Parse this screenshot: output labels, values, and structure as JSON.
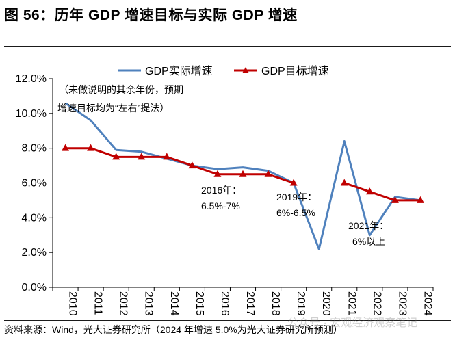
{
  "title": "图 56：历年 GDP 增速目标与实际 GDP 增速",
  "source": "资料来源：Wind，光大证券研究所（2024 年增速 5.0%为光大证券研究所预测）",
  "watermark": "公众号 · 宏观经济观察笔记",
  "chart_data": {
    "type": "line",
    "x": [
      "2010",
      "2011",
      "2012",
      "2013",
      "2014",
      "2015",
      "2016",
      "2017",
      "2018",
      "2019",
      "2020",
      "2021",
      "2022",
      "2023",
      "2024"
    ],
    "yticks": [
      "0.0%",
      "2.0%",
      "4.0%",
      "6.0%",
      "8.0%",
      "10.0%",
      "12.0%"
    ],
    "ylim": [
      0,
      12
    ],
    "grid": false,
    "legend": "top",
    "colors": {
      "actual": "#4f81bd",
      "target": "#c00000"
    },
    "series": [
      {
        "name": "GDP实际增速",
        "key": "actual",
        "values": [
          10.6,
          9.6,
          7.9,
          7.8,
          7.4,
          7.0,
          6.8,
          6.9,
          6.7,
          6.0,
          2.2,
          8.4,
          3.0,
          5.2,
          5.0
        ]
      },
      {
        "name": "GDP目标增速",
        "key": "target",
        "values": [
          8.0,
          8.0,
          7.5,
          7.5,
          7.5,
          7.0,
          6.5,
          6.5,
          6.5,
          6.0,
          null,
          6.0,
          5.5,
          5.0,
          5.0
        ]
      }
    ],
    "annotations": {
      "note_line1": "（未做说明的其余年份，预期",
      "note_line2": "增速目标均为“左右”提法）",
      "a2016_line1": "2016年：",
      "a2016_line2": "6.5%-7%",
      "a2019_line1": "2019年：",
      "a2019_line2": "6%-6.5%",
      "a2021_line1": "2021年：",
      "a2021_line2": "6%以上"
    }
  }
}
